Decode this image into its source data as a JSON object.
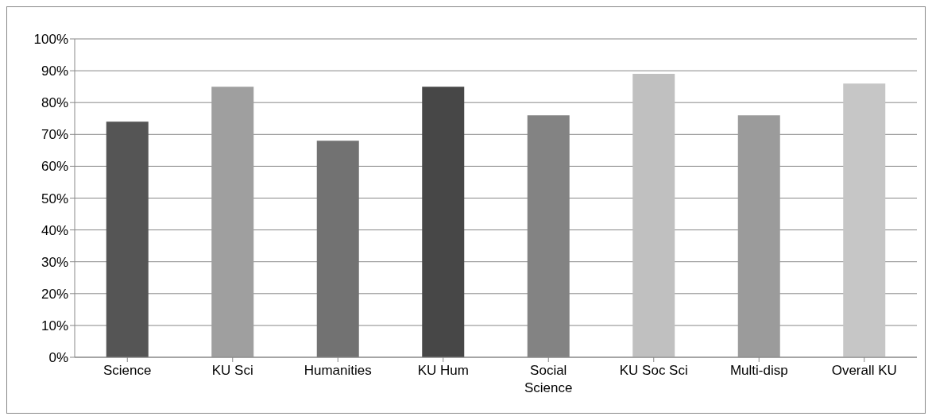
{
  "chart_data": {
    "type": "bar",
    "categories": [
      "Science",
      "KU Sci",
      "Humanities",
      "KU Hum",
      "Social Science",
      "KU Soc Sci",
      "Multi-disp",
      "Overall KU"
    ],
    "values": [
      74,
      85,
      68,
      85,
      76,
      89,
      76,
      86
    ],
    "colors": [
      "#555555",
      "#9f9f9f",
      "#727272",
      "#474747",
      "#838383",
      "#c0c0c0",
      "#9b9b9b",
      "#c6c6c6"
    ],
    "ylim": [
      0,
      100
    ],
    "yticks": [
      {
        "value": 0,
        "label": "0%"
      },
      {
        "value": 10,
        "label": "10%"
      },
      {
        "value": 20,
        "label": "20%"
      },
      {
        "value": 30,
        "label": "30%"
      },
      {
        "value": 40,
        "label": "40%"
      },
      {
        "value": 50,
        "label": "50%"
      },
      {
        "value": 60,
        "label": "60%"
      },
      {
        "value": 70,
        "label": "70%"
      },
      {
        "value": 80,
        "label": "80%"
      },
      {
        "value": 90,
        "label": "90%"
      },
      {
        "value": 100,
        "label": "100%"
      }
    ],
    "grid": "y"
  }
}
